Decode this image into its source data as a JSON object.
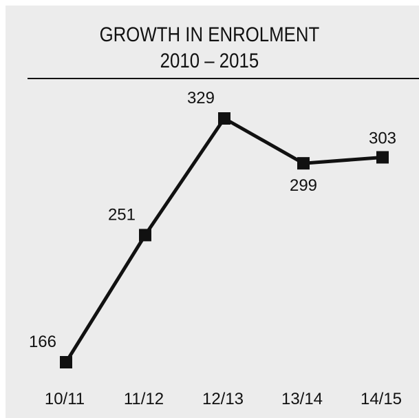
{
  "chart_data": {
    "type": "line",
    "title": "GROWTH IN ENROLMENT",
    "subtitle": "2010 – 2015",
    "xlabel": "",
    "ylabel": "",
    "categories": [
      "10/11",
      "11/12",
      "12/13",
      "13/14",
      "14/15"
    ],
    "series": [
      {
        "values": [
          166,
          251,
          329,
          299,
          303
        ],
        "data_labels": [
          "166",
          "251",
          "329",
          "299",
          "303"
        ],
        "color": "#111111"
      }
    ],
    "ylim": [
      166,
      329
    ],
    "grid": false,
    "legend": "none",
    "background_color": "#ececec"
  }
}
